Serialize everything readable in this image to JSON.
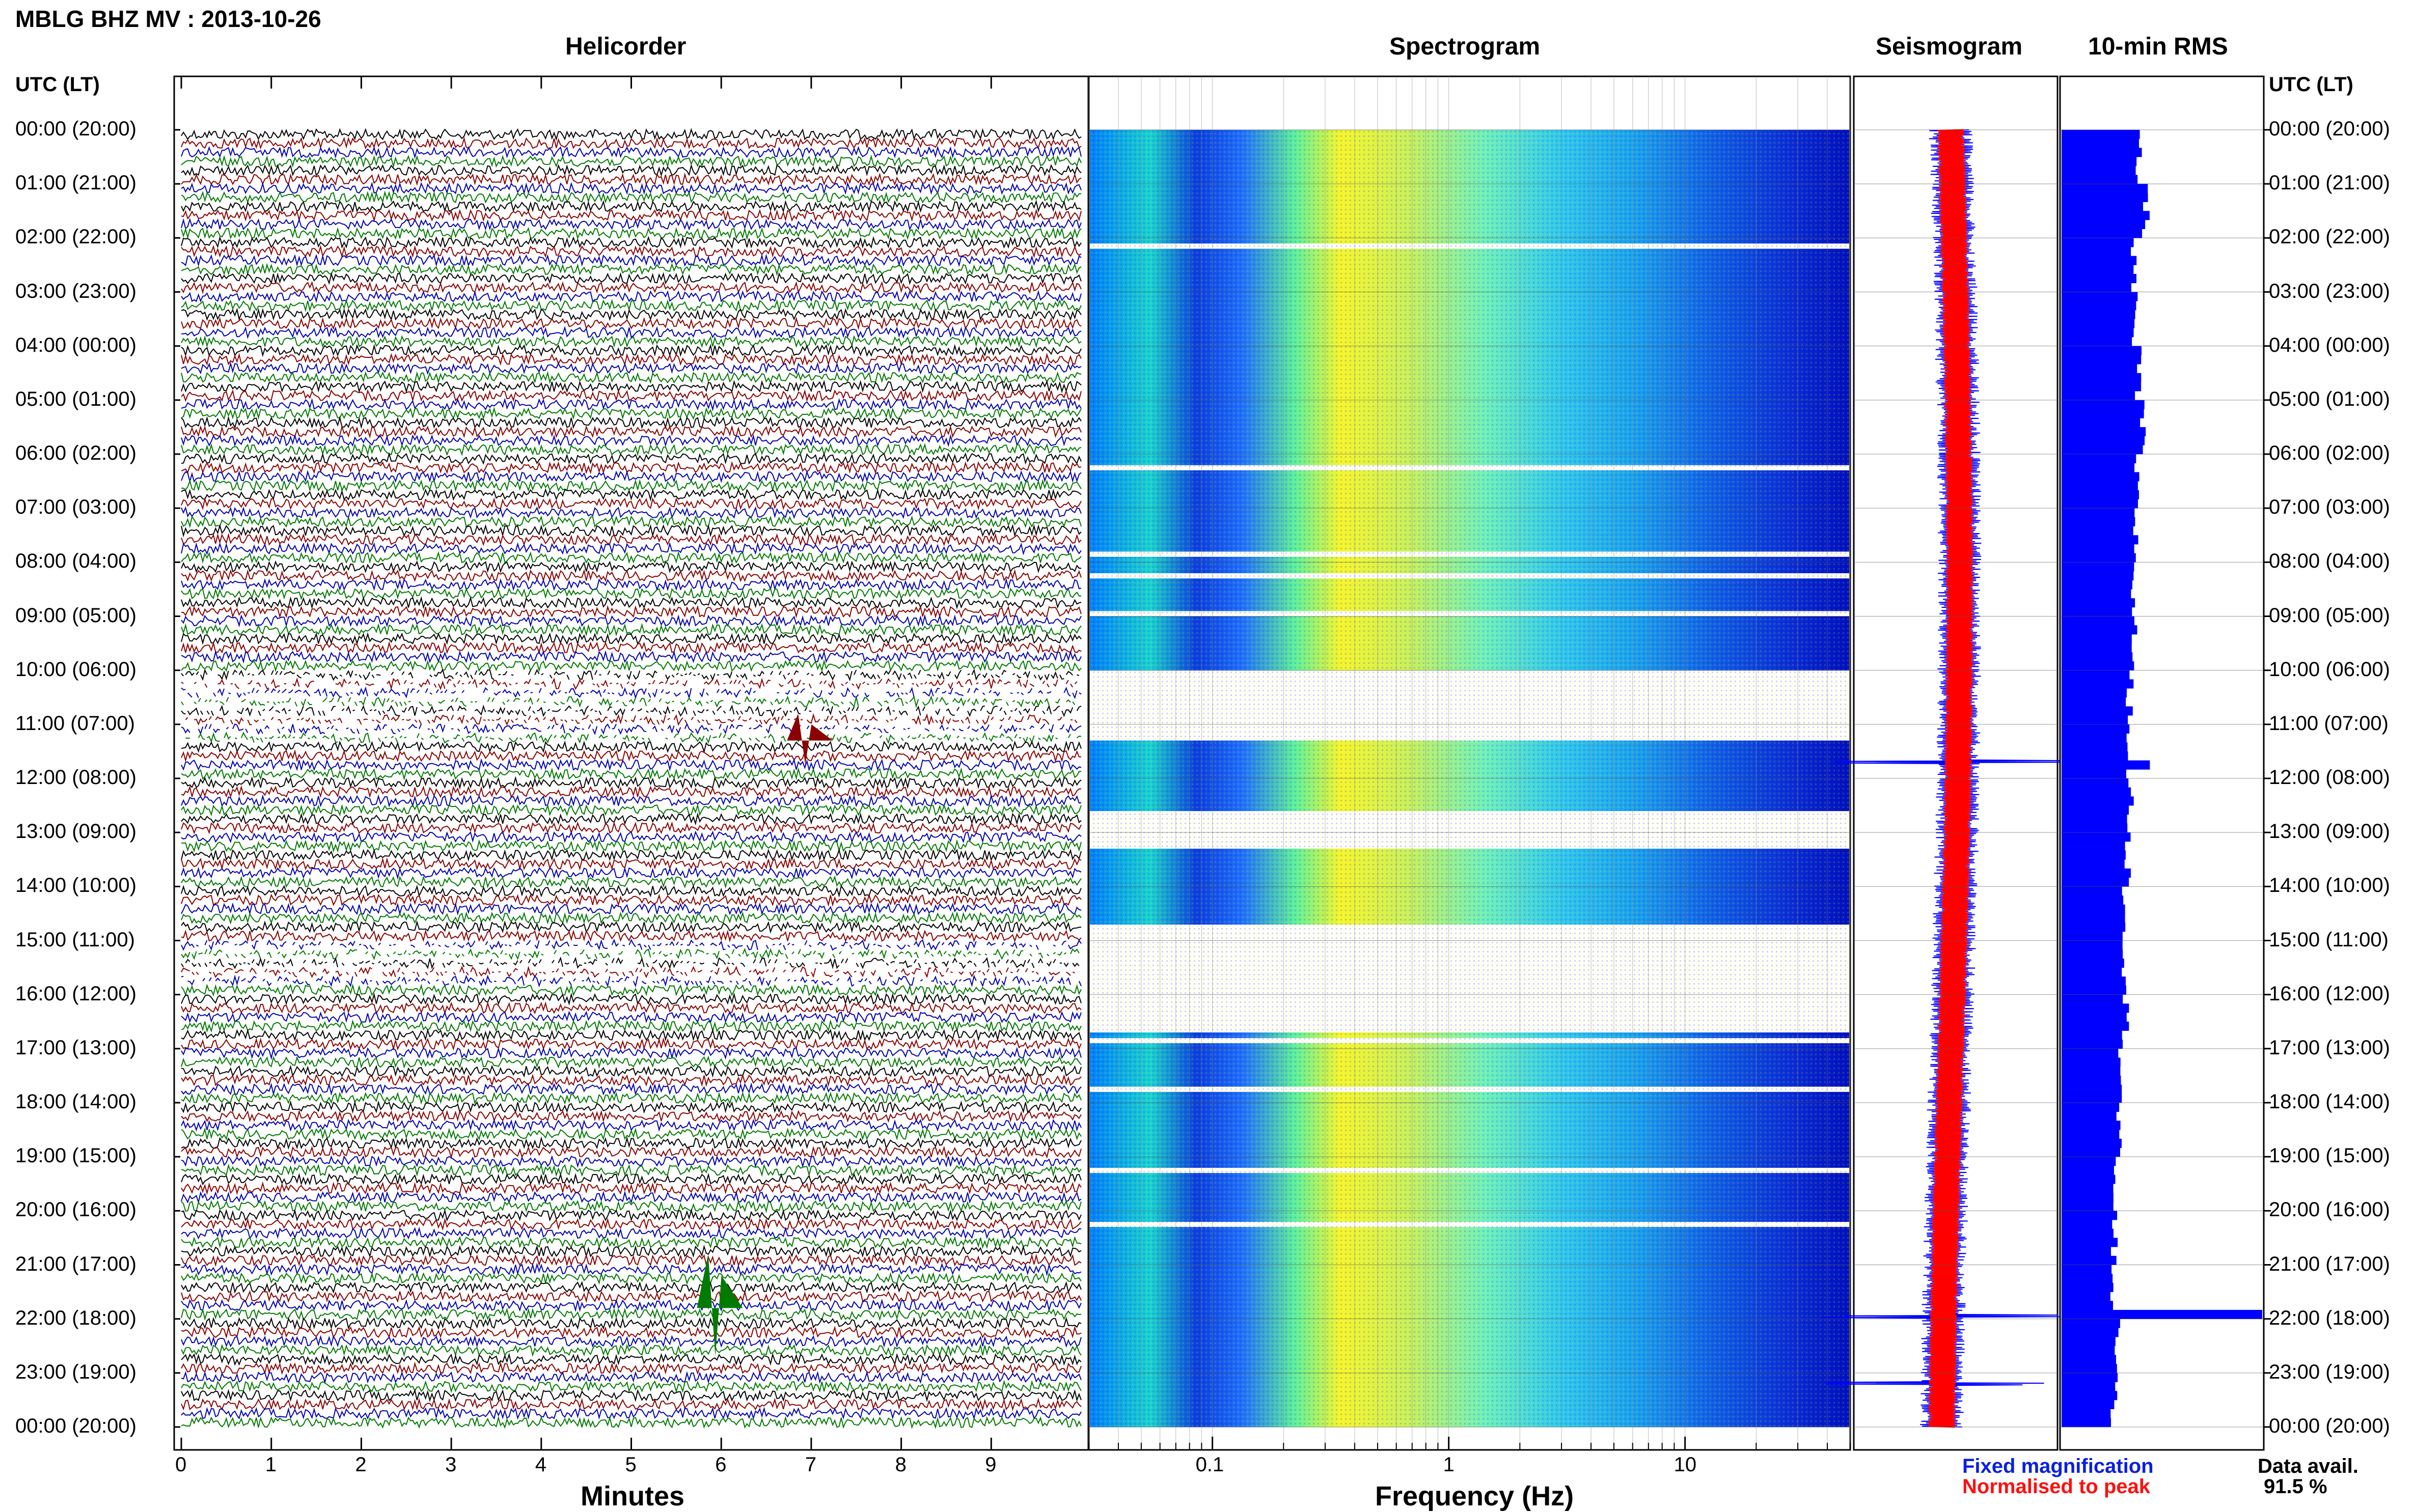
{
  "title": "MBLG BHZ MV : 2013-10-26",
  "panels": {
    "helicorder": "Helicorder",
    "spectrogram": "Spectrogram",
    "seismogram": "Seismogram",
    "rms": "10-min RMS"
  },
  "time_axis_label": "UTC (LT)",
  "time_labels": [
    "00:00 (20:00)",
    "01:00 (21:00)",
    "02:00 (22:00)",
    "03:00 (23:00)",
    "04:00 (00:00)",
    "05:00 (01:00)",
    "06:00 (02:00)",
    "07:00 (03:00)",
    "08:00 (04:00)",
    "09:00 (05:00)",
    "10:00 (06:00)",
    "11:00 (07:00)",
    "12:00 (08:00)",
    "13:00 (09:00)",
    "14:00 (10:00)",
    "15:00 (11:00)",
    "16:00 (12:00)",
    "17:00 (13:00)",
    "18:00 (14:00)",
    "19:00 (15:00)",
    "20:00 (16:00)",
    "21:00 (17:00)",
    "22:00 (18:00)",
    "23:00 (19:00)",
    "00:00 (20:00)"
  ],
  "x_axes": {
    "helicorder": {
      "label": "Minutes",
      "ticks": [
        "0",
        "1",
        "2",
        "3",
        "4",
        "5",
        "6",
        "7",
        "8",
        "9"
      ]
    },
    "spectrogram": {
      "label": "Frequency (Hz)",
      "ticks": [
        "0.1",
        "1",
        "10"
      ]
    }
  },
  "legend": {
    "fixed": "Fixed magnification",
    "normalised": "Normalised to peak"
  },
  "data_avail": {
    "label": "Data avail.",
    "value": "91.5 %"
  },
  "colors": {
    "trace_cycle": [
      "#000000",
      "#8b0000",
      "#0000b0",
      "#007a00"
    ],
    "fixed": "#0000ff",
    "normalised": "#ff0000",
    "rms_bar": "#0000ff",
    "spectro_colormap": [
      "#00007f",
      "#0000ff",
      "#007fff",
      "#00ffff",
      "#7fff7f",
      "#ffff00"
    ]
  },
  "chart_data": [
    {
      "type": "line",
      "title": "Helicorder",
      "xlabel": "Minutes",
      "xlim": [
        0,
        10
      ],
      "ylim_hours_utc": [
        0,
        24
      ],
      "traces_per_hour": 6,
      "events": [
        {
          "hour_utc": 11.3,
          "minute": 6.9,
          "relative_amplitude": 3
        },
        {
          "hour_utc": 21.8,
          "minute": 5.9,
          "relative_amplitude": 6
        }
      ],
      "gaps_hours_utc": [
        [
          10.0,
          11.3
        ],
        [
          15.0,
          15.7
        ]
      ]
    },
    {
      "type": "heatmap",
      "title": "Spectrogram",
      "xlabel": "Frequency (Hz)",
      "x_scale": "log",
      "xlim": [
        0.03,
        50
      ],
      "ylim_hours_utc": [
        0,
        24
      ],
      "peak_band_hz": [
        0.2,
        0.8
      ],
      "gaps_hours_utc": [
        [
          6.2,
          6.3
        ],
        [
          7.8,
          7.9
        ],
        [
          8.9,
          9.0
        ],
        [
          10.0,
          11.3
        ],
        [
          12.6,
          13.3
        ],
        [
          14.8,
          16.7
        ]
      ]
    },
    {
      "type": "line",
      "title": "Seismogram",
      "series": [
        {
          "name": "Fixed magnification"
        },
        {
          "name": "Normalised to peak"
        }
      ],
      "spikes_hours_utc": [
        11.7,
        21.95,
        23.2
      ]
    },
    {
      "type": "bar",
      "title": "10-min RMS",
      "orientation": "horizontal",
      "ylim_hours_utc": [
        0,
        24
      ],
      "hourly_relative_rms": [
        0.38,
        0.42,
        0.36,
        0.36,
        0.38,
        0.4,
        0.37,
        0.37,
        0.36,
        0.36,
        0.34,
        0.34,
        0.34,
        0.33,
        0.32,
        0.32,
        0.32,
        0.3,
        0.28,
        0.27,
        0.26,
        0.26,
        0.28,
        0.26
      ],
      "peak": {
        "hour_utc": 21.9,
        "relative_rms": 1.0
      }
    }
  ]
}
